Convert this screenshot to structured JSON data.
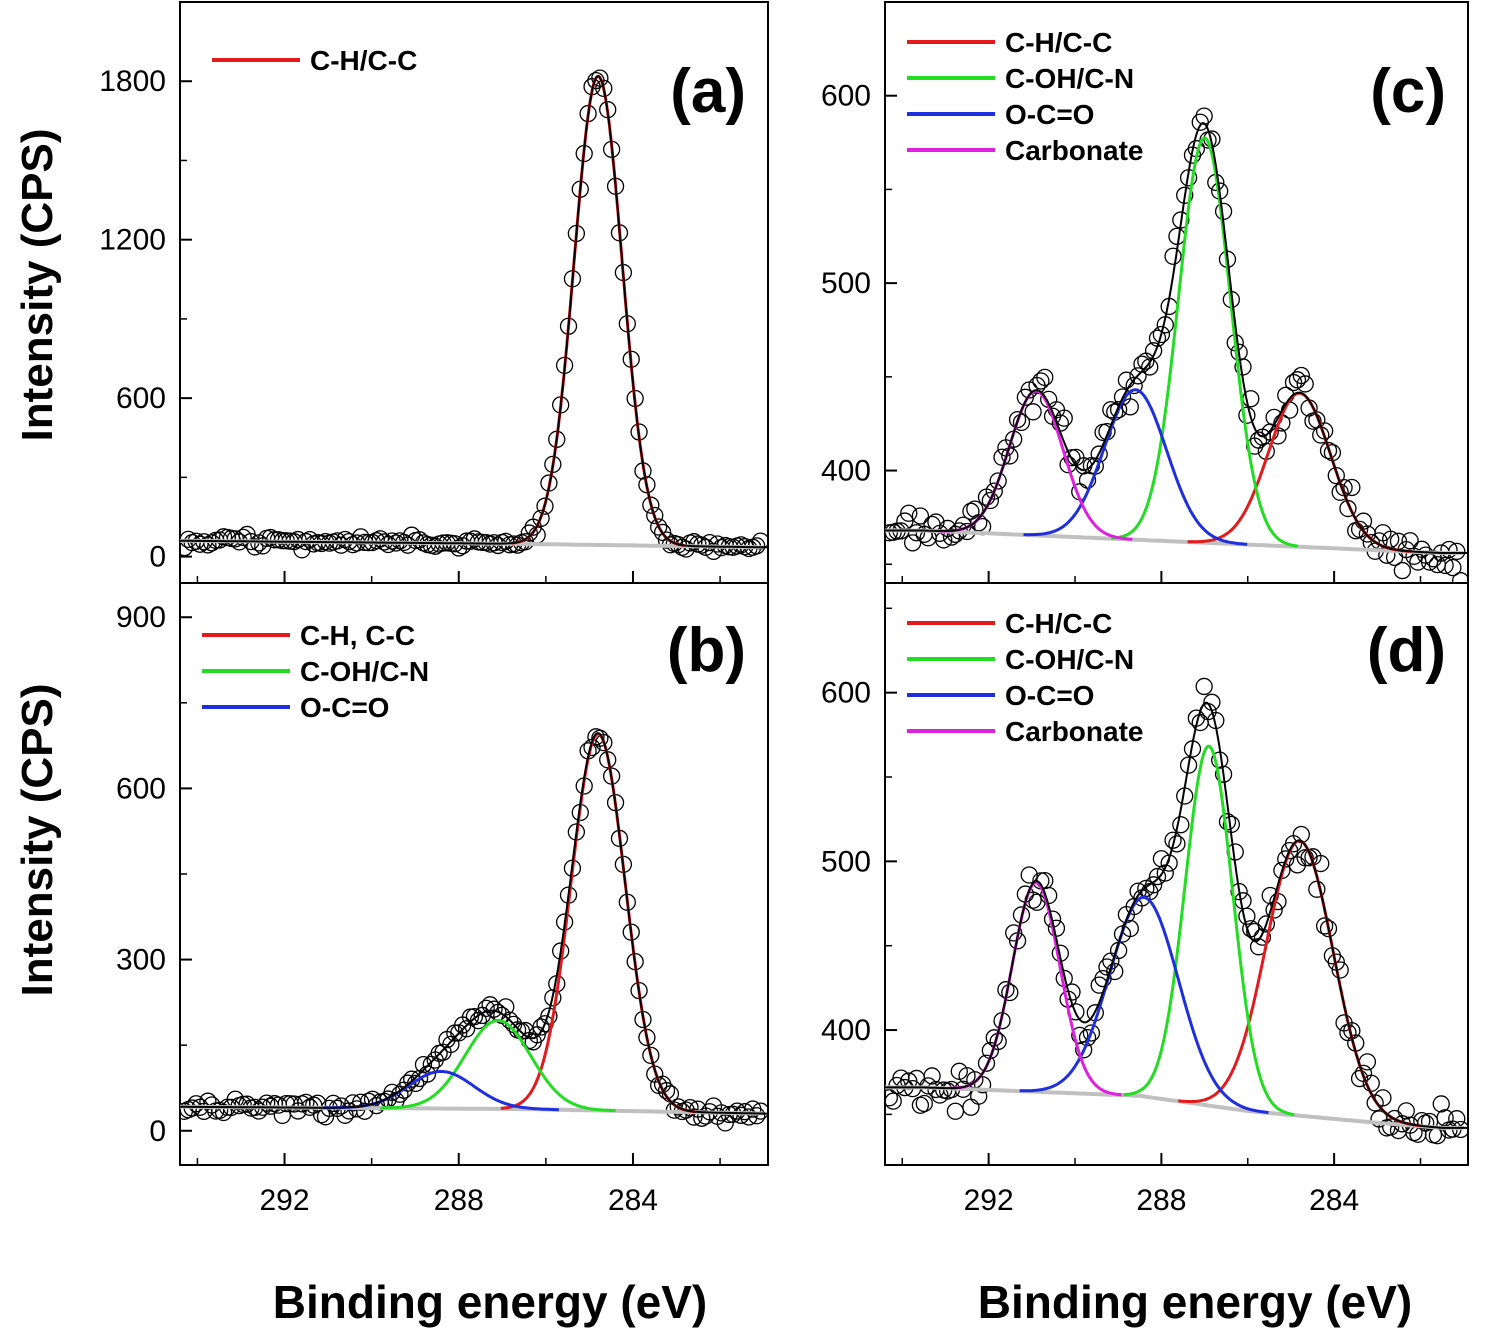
{
  "figure": {
    "xlabel": "Binding energy (eV)",
    "ylabel": "Intensity (CPS)",
    "fit_envelope_color": "#000000",
    "background_color": "#c0c0c0",
    "data_marker": "open-circle"
  },
  "chart_data": [
    {
      "id": "a",
      "type": "line",
      "panel_label": "(a)",
      "title": "",
      "xlabel": "",
      "ylabel": "Intensity (CPS)",
      "xlim": [
        294.4,
        280.9
      ],
      "ylim": [
        -100,
        2100
      ],
      "xticks": [
        292,
        288,
        284
      ],
      "yticks": [
        0,
        600,
        1200,
        1800
      ],
      "legend_position": "top-left",
      "baseline": [
        [
          294.4,
          60
        ],
        [
          286.5,
          48
        ],
        [
          280.9,
          35
        ]
      ],
      "series": [
        {
          "name": "C-H/C-C",
          "color": "#e41a1c",
          "shape": "gaussian",
          "center": 284.8,
          "height": 1775,
          "sigma": 0.55
        }
      ],
      "measured_noise": 18
    },
    {
      "id": "b",
      "type": "line",
      "panel_label": "(b)",
      "title": "",
      "xlabel": "Binding energy (eV)",
      "ylabel": "Intensity (CPS)",
      "xlim": [
        294.4,
        280.9
      ],
      "ylim": [
        -60,
        960
      ],
      "xticks": [
        292,
        288,
        284
      ],
      "yticks": [
        0,
        300,
        600,
        900
      ],
      "legend_position": "top-left",
      "baseline": [
        [
          294.4,
          42
        ],
        [
          286.5,
          38
        ],
        [
          280.9,
          30
        ]
      ],
      "series": [
        {
          "name": "C-H, C-C",
          "color": "#e41a1c",
          "shape": "gaussian",
          "center": 284.8,
          "height": 660,
          "sigma": 0.62
        },
        {
          "name": "C-OH/C-N",
          "color": "#22dd22",
          "shape": "gaussian",
          "center": 287.1,
          "height": 155,
          "sigma": 0.75
        },
        {
          "name": "O-C=O",
          "color": "#1f2fe0",
          "shape": "gaussian",
          "center": 288.4,
          "height": 65,
          "sigma": 0.75
        }
      ],
      "measured_noise": 10
    },
    {
      "id": "c",
      "type": "line",
      "panel_label": "(c)",
      "title": "",
      "xlabel": "",
      "ylabel": "",
      "xlim": [
        294.4,
        280.9
      ],
      "ylim": [
        340,
        650
      ],
      "xticks": [
        292,
        288,
        284
      ],
      "yticks": [
        400,
        500,
        600
      ],
      "legend_position": "top-left",
      "baseline": [
        [
          293.5,
          368
        ],
        [
          281.5,
          356
        ]
      ],
      "series": [
        {
          "name": "C-H/C-C",
          "color": "#e41a1c",
          "shape": "gaussian",
          "center": 284.8,
          "height": 82,
          "sigma": 0.72
        },
        {
          "name": "C-OH/C-N",
          "color": "#22dd22",
          "shape": "gaussian",
          "center": 287.0,
          "height": 216,
          "sigma": 0.6
        },
        {
          "name": "O-C=O",
          "color": "#1f2fe0",
          "shape": "gaussian",
          "center": 288.6,
          "height": 80,
          "sigma": 0.72
        },
        {
          "name": "Carbonate",
          "color": "#e020e0",
          "shape": "gaussian",
          "center": 290.9,
          "height": 77,
          "sigma": 0.62
        }
      ],
      "measured_noise": 9
    },
    {
      "id": "d",
      "type": "line",
      "panel_label": "(d)",
      "title": "",
      "xlabel": "Binding energy (eV)",
      "ylabel": "",
      "xlim": [
        294.4,
        280.9
      ],
      "ylim": [
        320,
        665
      ],
      "xticks": [
        292,
        288,
        284
      ],
      "yticks": [
        400,
        500,
        600
      ],
      "legend_position": "top-left",
      "baseline": [
        [
          293.5,
          366
        ],
        [
          288.5,
          361
        ],
        [
          286.0,
          352
        ],
        [
          283.0,
          345
        ],
        [
          281.5,
          342
        ]
      ],
      "series": [
        {
          "name": "C-H/C-C",
          "color": "#e41a1c",
          "shape": "gaussian",
          "center": 284.8,
          "height": 163,
          "sigma": 0.78
        },
        {
          "name": "C-OH/C-N",
          "color": "#22dd22",
          "shape": "gaussian",
          "center": 286.9,
          "height": 213,
          "sigma": 0.55
        },
        {
          "name": "O-C=O",
          "color": "#1f2fe0",
          "shape": "gaussian",
          "center": 288.4,
          "height": 118,
          "sigma": 0.8
        },
        {
          "name": "Carbonate",
          "color": "#e020e0",
          "shape": "gaussian",
          "center": 290.9,
          "height": 124,
          "sigma": 0.55
        }
      ],
      "measured_noise": 9
    }
  ]
}
